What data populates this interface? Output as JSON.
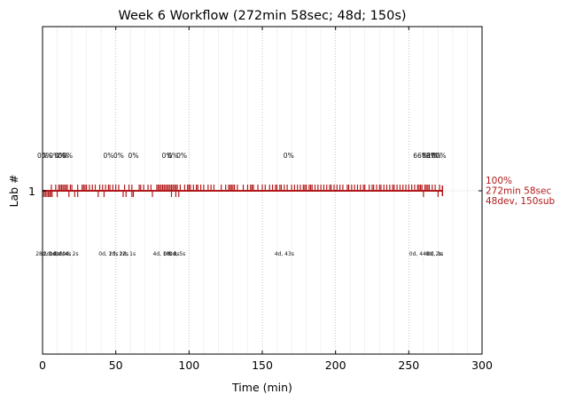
{
  "chart_data": {
    "type": "line",
    "title": "Week 6 Workflow (272min 58sec; 48d; 150s)",
    "xlabel": "Time (min)",
    "ylabel": "Lab #",
    "xlim": [
      0,
      300
    ],
    "x_ticks": [
      "0",
      "50",
      "100",
      "150",
      "200",
      "250",
      "300"
    ],
    "y_ticks": [
      "1"
    ],
    "grid": "vertical dotted lines at major ticks, faint lines at minor ticks",
    "series_color": "#b2191a",
    "series": [
      {
        "lab": "1",
        "end_min": 272.97,
        "summary_lines": [
          "100%",
          "272min 58sec",
          "48dev, 150sub"
        ],
        "dev_marks": [
          0,
          1,
          2,
          3,
          4,
          5,
          5.5,
          6.5,
          10,
          18,
          22,
          24,
          38,
          42,
          55,
          57,
          61,
          62,
          75,
          88,
          91,
          93,
          260,
          270
        ],
        "sub_marks": [
          6,
          9,
          11,
          12,
          13,
          14,
          15,
          16,
          17,
          19,
          20,
          24,
          27,
          28,
          29,
          30,
          32,
          34,
          36,
          39,
          41,
          43,
          45,
          46,
          48,
          50,
          52,
          56,
          59,
          61,
          66,
          67,
          69,
          72,
          74,
          78,
          79,
          80,
          81,
          82,
          83,
          84,
          85,
          86,
          87,
          88,
          89,
          90,
          91,
          92,
          94,
          97,
          99,
          100,
          101,
          103,
          105,
          106,
          108,
          110,
          113,
          115,
          117,
          122,
          125,
          127,
          128,
          129,
          130,
          131,
          133,
          137,
          140,
          142,
          143,
          144,
          147,
          150,
          152,
          155,
          157,
          159,
          160,
          162,
          163,
          165,
          167,
          170,
          172,
          174,
          176,
          178,
          179,
          180,
          182,
          183,
          184,
          186,
          188,
          190,
          192,
          194,
          196,
          197,
          199,
          201,
          203,
          205,
          208,
          209,
          211,
          213,
          215,
          217,
          219,
          220,
          223,
          225,
          226,
          228,
          230,
          231,
          233,
          235,
          237,
          239,
          240,
          242,
          244,
          246,
          248,
          250,
          252,
          254,
          256,
          257,
          258,
          259,
          261,
          262,
          263,
          264,
          266,
          268,
          271
        ],
        "pct_labels": [
          {
            "x": 0,
            "text": "0%"
          },
          {
            "x": 3,
            "text": "0%"
          },
          {
            "x": 8,
            "text": "0%"
          },
          {
            "x": 12,
            "text": "0%"
          },
          {
            "x": 14,
            "text": "0%"
          },
          {
            "x": 17,
            "text": "0%"
          },
          {
            "x": 45,
            "text": "0%"
          },
          {
            "x": 52,
            "text": "0%"
          },
          {
            "x": 62,
            "text": "0%"
          },
          {
            "x": 85,
            "text": "0%"
          },
          {
            "x": 89,
            "text": "0%"
          },
          {
            "x": 95,
            "text": "0%"
          },
          {
            "x": 168,
            "text": "0%"
          },
          {
            "x": 258,
            "text": "66%"
          },
          {
            "x": 264,
            "text": "88%"
          },
          {
            "x": 267,
            "text": "97%"
          },
          {
            "x": 269,
            "text": "100%"
          }
        ],
        "dur_labels": [
          {
            "x": 2,
            "text": "28d, 1s"
          },
          {
            "x": 6,
            "text": "2d, 0s"
          },
          {
            "x": 10,
            "text": "0d, 0s"
          },
          {
            "x": 14,
            "text": "0d, 4s"
          },
          {
            "x": 19,
            "text": "0d, 2s"
          },
          {
            "x": 45,
            "text": "0d, 10s"
          },
          {
            "x": 52,
            "text": "2d, 12s"
          },
          {
            "x": 58,
            "text": "2d, 1s"
          },
          {
            "x": 82,
            "text": "4d, 18s"
          },
          {
            "x": 88,
            "text": "0d, 8s"
          },
          {
            "x": 92,
            "text": "0d, 5s"
          },
          {
            "x": 165,
            "text": "4d, 43s"
          },
          {
            "x": 257,
            "text": "0d, 44s"
          },
          {
            "x": 267,
            "text": "0d, 2s"
          },
          {
            "x": 268,
            "text": "0d, 1s"
          }
        ]
      }
    ]
  }
}
